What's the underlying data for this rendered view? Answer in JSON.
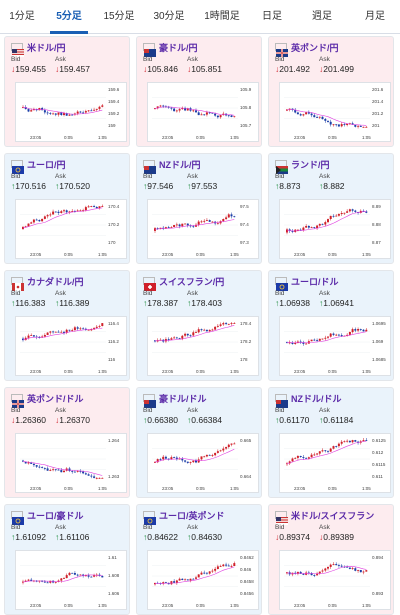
{
  "tabs": [
    {
      "label": "1分足",
      "active": false
    },
    {
      "label": "5分足",
      "active": true
    },
    {
      "label": "15分足",
      "active": false
    },
    {
      "label": "30分足",
      "active": false
    },
    {
      "label": "1時間足",
      "active": false
    },
    {
      "label": "日足",
      "active": false
    },
    {
      "label": "週足",
      "active": false
    },
    {
      "label": "月足",
      "active": false
    }
  ],
  "colors": {
    "accent": "#1a5fb4",
    "up_card": "#eaf3fb",
    "down_card": "#fdecef",
    "pair_text": "#5b2aa8",
    "bull": "#d0202a",
    "bear": "#1d3fa8",
    "ma": "#e040e0"
  },
  "labels": {
    "bid": "Bid",
    "ask": "Ask"
  },
  "cards": [
    {
      "pair": "米ドル/円",
      "dir": "down",
      "bid": "159.455",
      "ask": "159.457",
      "yticks": [
        "159.6",
        "159.4",
        "159.2",
        "159"
      ],
      "xticks": [
        "23:05",
        "0:05",
        "1:05"
      ],
      "flag": "us"
    },
    {
      "pair": "豪ドル/円",
      "dir": "down",
      "bid": "105.846",
      "ask": "105.851",
      "yticks": [
        "105.9",
        "105.8",
        "105.7"
      ],
      "xticks": [
        "23:05",
        "0:05",
        "1:05"
      ],
      "flag": "au"
    },
    {
      "pair": "英ポンド/円",
      "dir": "down",
      "bid": "201.492",
      "ask": "201.499",
      "yticks": [
        "201.6",
        "201.4",
        "201.2",
        "201"
      ],
      "xticks": [
        "23:05",
        "0:05",
        "1:05"
      ],
      "flag": "gb"
    },
    {
      "pair": "ユーロ/円",
      "dir": "up",
      "bid": "170.516",
      "ask": "170.520",
      "yticks": [
        "170.4",
        "170.2",
        "170"
      ],
      "xticks": [
        "23:05",
        "0:05",
        "1:05"
      ],
      "flag": "eu"
    },
    {
      "pair": "NZドル/円",
      "dir": "up",
      "bid": "97.546",
      "ask": "97.553",
      "yticks": [
        "97.5",
        "97.4",
        "97.3"
      ],
      "xticks": [
        "23:05",
        "0:05",
        "1:05"
      ],
      "flag": "nz"
    },
    {
      "pair": "ランド/円",
      "dir": "up",
      "bid": "8.873",
      "ask": "8.882",
      "yticks": [
        "8.89",
        "8.88",
        "8.87"
      ],
      "xticks": [
        "23:05",
        "0:05",
        "1:05"
      ],
      "flag": "za"
    },
    {
      "pair": "カナダドル/円",
      "dir": "up",
      "bid": "116.383",
      "ask": "116.389",
      "yticks": [
        "116.4",
        "116.2",
        "116"
      ],
      "xticks": [
        "23:05",
        "0:05",
        "1:05"
      ],
      "flag": "ca"
    },
    {
      "pair": "スイスフラン/円",
      "dir": "up",
      "bid": "178.387",
      "ask": "178.403",
      "yticks": [
        "178.4",
        "178.2",
        "178"
      ],
      "xticks": [
        "23:05",
        "0:05",
        "1:05"
      ],
      "flag": "ch"
    },
    {
      "pair": "ユーロ/ドル",
      "dir": "up",
      "bid": "1.06938",
      "ask": "1.06941",
      "yticks": [
        "1.0695",
        "1.069",
        "1.0685"
      ],
      "xticks": [
        "23:05",
        "0:05",
        "1:05"
      ],
      "flag": "eu"
    },
    {
      "pair": "英ポンド/ドル",
      "dir": "down",
      "bid": "1.26360",
      "ask": "1.26370",
      "yticks": [
        "1.264",
        "1.263"
      ],
      "xticks": [
        "23:05",
        "0:05",
        "1:05"
      ],
      "flag": "gb"
    },
    {
      "pair": "豪ドル/ドル",
      "dir": "up",
      "bid": "0.66380",
      "ask": "0.66384",
      "yticks": [
        "0.665",
        "0.664"
      ],
      "xticks": [
        "23:05",
        "0:05",
        "1:05"
      ],
      "flag": "au"
    },
    {
      "pair": "NZドル/ドル",
      "dir": "up",
      "bid": "0.61170",
      "ask": "0.61184",
      "yticks": [
        "0.6125",
        "0.612",
        "0.6115",
        "0.611"
      ],
      "xticks": [
        "23:05",
        "0:05",
        "1:05"
      ],
      "flag": "nz"
    },
    {
      "pair": "ユーロ/豪ドル",
      "dir": "up",
      "bid": "1.61092",
      "ask": "1.61106",
      "yticks": [
        "1.61",
        "1.608",
        "1.606"
      ],
      "xticks": [
        "23:05",
        "0:05",
        "1:05"
      ],
      "flag": "eu"
    },
    {
      "pair": "ユーロ/英ポンド",
      "dir": "up",
      "bid": "0.84622",
      "ask": "0.84630",
      "yticks": [
        "0.8462",
        "0.846",
        "0.8458",
        "0.8456"
      ],
      "xticks": [
        "23:05",
        "0:05",
        "1:05"
      ],
      "flag": "eu"
    },
    {
      "pair": "米ドル/スイスフラン",
      "dir": "down",
      "bid": "0.89374",
      "ask": "0.89389",
      "yticks": [
        "0.894",
        "0.893"
      ],
      "xticks": [
        "23:05",
        "0:05",
        "1:05"
      ],
      "flag": "us"
    }
  ]
}
